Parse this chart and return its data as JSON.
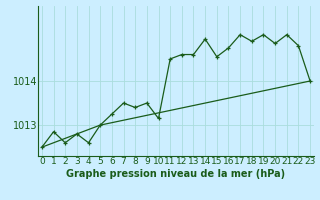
{
  "title": "Graphe pression niveau de la mer (hPa)",
  "bg_color": "#cceeff",
  "grid_color": "#aadddd",
  "line_color": "#1a5c1a",
  "axis_color": "#1a5c1a",
  "x_labels": [
    "0",
    "1",
    "2",
    "3",
    "4",
    "5",
    "6",
    "7",
    "8",
    "9",
    "10",
    "11",
    "12",
    "13",
    "14",
    "15",
    "16",
    "17",
    "18",
    "19",
    "20",
    "21",
    "22",
    "23"
  ],
  "y_ticks": [
    1013,
    1014
  ],
  "ylim": [
    1012.3,
    1015.7
  ],
  "xlim": [
    -0.3,
    23.3
  ],
  "series1_x": [
    0,
    1,
    2,
    3,
    4,
    5,
    6,
    7,
    8,
    9,
    10,
    11,
    12,
    13,
    14,
    15,
    16,
    17,
    18,
    19,
    20,
    21,
    22,
    23
  ],
  "series1_y": [
    1012.5,
    1012.85,
    1012.6,
    1012.8,
    1012.6,
    1013.0,
    1013.25,
    1013.5,
    1013.4,
    1013.5,
    1013.15,
    1014.5,
    1014.6,
    1014.6,
    1014.95,
    1014.55,
    1014.75,
    1015.05,
    1014.9,
    1015.05,
    1014.85,
    1015.05,
    1014.8,
    1014.0
  ],
  "series2_x": [
    0,
    5,
    23
  ],
  "series2_y": [
    1012.5,
    1013.0,
    1014.0
  ],
  "xlabel_fontsize": 6.5,
  "ylabel_fontsize": 7,
  "title_fontsize": 7
}
